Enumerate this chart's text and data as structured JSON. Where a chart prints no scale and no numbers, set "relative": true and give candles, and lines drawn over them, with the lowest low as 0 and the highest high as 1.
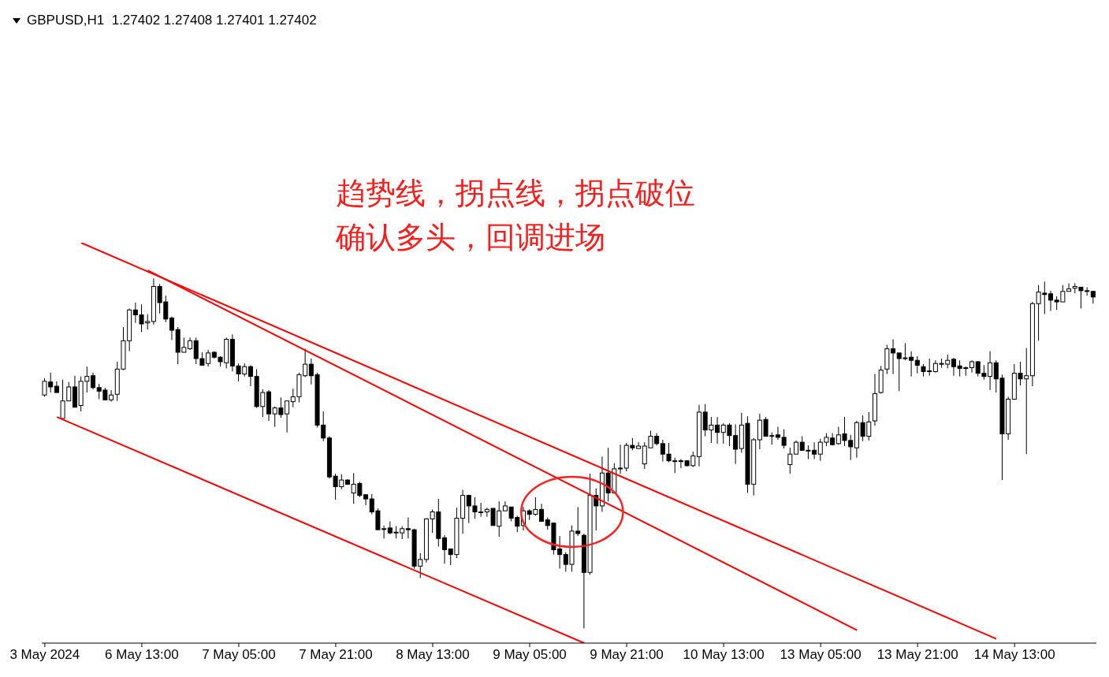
{
  "chart_data": {
    "type": "candlestick",
    "title": "GBPUSD,H1  1.27402 1.27408 1.27401 1.27402",
    "relative": true,
    "color": "#000000",
    "categories": [
      "3 May 2024",
      null,
      null,
      null,
      null,
      null,
      null,
      null,
      null,
      null,
      null,
      null,
      null,
      null,
      null,
      null,
      "6 May 13:00",
      null,
      null,
      null,
      null,
      null,
      null,
      null,
      null,
      null,
      null,
      null,
      null,
      null,
      null,
      null,
      "7 May 05:00",
      null,
      null,
      null,
      null,
      null,
      null,
      null,
      null,
      null,
      null,
      null,
      null,
      null,
      null,
      null,
      "7 May 21:00",
      null,
      null,
      null,
      null,
      null,
      null,
      null,
      null,
      null,
      null,
      null,
      null,
      null,
      null,
      null,
      "8 May 13:00",
      null,
      null,
      null,
      null,
      null,
      null,
      null,
      null,
      null,
      null,
      null,
      null,
      null,
      null,
      null,
      "9 May 05:00",
      null,
      null,
      null,
      null,
      null,
      null,
      null,
      null,
      null,
      null,
      null,
      null,
      null,
      null,
      null,
      "9 May 21:00",
      null,
      null,
      null,
      null,
      null,
      null,
      null,
      null,
      null,
      null,
      null,
      null,
      null,
      null,
      null,
      "10 May 13:00",
      null,
      null,
      null,
      null,
      null,
      null,
      null,
      null,
      null,
      null,
      null,
      null,
      null,
      null,
      null,
      "13 May 05:00",
      null,
      null,
      null,
      null,
      null,
      null,
      null,
      null,
      null,
      null,
      null,
      null,
      null,
      null,
      null,
      "13 May 21:00",
      null,
      null,
      null,
      null,
      null,
      null,
      null,
      null,
      null,
      null,
      null,
      null,
      null,
      null,
      null,
      "14 May 13:00",
      null,
      null,
      null,
      null,
      null,
      null,
      null,
      null,
      null,
      null,
      null,
      null,
      null
    ],
    "ohlc": [
      [
        0.667,
        0.715,
        0.662,
        0.706
      ],
      [
        0.704,
        0.731,
        0.674,
        0.69
      ],
      [
        0.692,
        0.706,
        0.674,
        0.674
      ],
      [
        0.6,
        0.711,
        0.6,
        0.65
      ],
      [
        0.65,
        0.704,
        0.65,
        0.69
      ],
      [
        0.69,
        0.722,
        0.632,
        0.632
      ],
      [
        0.637,
        0.72,
        0.62,
        0.706
      ],
      [
        0.706,
        0.748,
        0.674,
        0.72
      ],
      [
        0.722,
        0.731,
        0.683,
        0.688
      ],
      [
        0.688,
        0.699,
        0.655,
        0.678
      ],
      [
        0.681,
        0.688,
        0.653,
        0.653
      ],
      [
        0.653,
        0.681,
        0.648,
        0.667
      ],
      [
        0.669,
        0.762,
        0.65,
        0.741
      ],
      [
        0.741,
        0.861,
        0.738,
        0.822
      ],
      [
        0.822,
        0.914,
        0.792,
        0.91
      ],
      [
        0.91,
        0.931,
        0.873,
        0.896
      ],
      [
        0.896,
        0.926,
        0.847,
        0.87
      ],
      [
        0.873,
        0.898,
        0.854,
        0.877
      ],
      [
        0.877,
        1.0,
        0.868,
        0.977
      ],
      [
        0.977,
        0.984,
        0.9,
        0.931
      ],
      [
        0.933,
        0.951,
        0.875,
        0.884
      ],
      [
        0.887,
        0.891,
        0.824,
        0.852
      ],
      [
        0.854,
        0.861,
        0.755,
        0.789
      ],
      [
        0.789,
        0.831,
        0.789,
        0.803
      ],
      [
        0.799,
        0.831,
        0.796,
        0.822
      ],
      [
        0.822,
        0.831,
        0.755,
        0.771
      ],
      [
        0.771,
        0.789,
        0.752,
        0.752
      ],
      [
        0.757,
        0.796,
        0.748,
        0.787
      ],
      [
        0.789,
        0.792,
        0.771,
        0.775
      ],
      [
        0.775,
        0.778,
        0.748,
        0.762
      ],
      [
        0.759,
        0.831,
        0.743,
        0.826
      ],
      [
        0.826,
        0.84,
        0.734,
        0.75
      ],
      [
        0.75,
        0.757,
        0.706,
        0.727
      ],
      [
        0.727,
        0.757,
        0.72,
        0.748
      ],
      [
        0.748,
        0.752,
        0.692,
        0.72
      ],
      [
        0.72,
        0.741,
        0.63,
        0.634
      ],
      [
        0.634,
        0.683,
        0.604,
        0.674
      ],
      [
        0.676,
        0.681,
        0.593,
        0.613
      ],
      [
        0.613,
        0.634,
        0.576,
        0.63
      ],
      [
        0.63,
        0.66,
        0.602,
        0.611
      ],
      [
        0.613,
        0.65,
        0.56,
        0.65
      ],
      [
        0.648,
        0.685,
        0.632,
        0.662
      ],
      [
        0.662,
        0.731,
        0.646,
        0.725
      ],
      [
        0.722,
        0.799,
        0.718,
        0.755
      ],
      [
        0.755,
        0.771,
        0.697,
        0.722
      ],
      [
        0.725,
        0.731,
        0.574,
        0.581
      ],
      [
        0.581,
        0.62,
        0.535,
        0.544
      ],
      [
        0.544,
        0.549,
        0.428,
        0.433
      ],
      [
        0.435,
        0.442,
        0.368,
        0.405
      ],
      [
        0.405,
        0.44,
        0.398,
        0.424
      ],
      [
        0.424,
        0.426,
        0.412,
        0.412
      ],
      [
        0.387,
        0.444,
        0.356,
        0.412
      ],
      [
        0.414,
        0.419,
        0.375,
        0.38
      ],
      [
        0.382,
        0.382,
        0.352,
        0.37
      ],
      [
        0.37,
        0.384,
        0.326,
        0.333
      ],
      [
        0.336,
        0.343,
        0.282,
        0.282
      ],
      [
        0.285,
        0.294,
        0.257,
        0.285
      ],
      [
        0.287,
        0.306,
        0.269,
        0.273
      ],
      [
        0.275,
        0.292,
        0.257,
        0.275
      ],
      [
        0.273,
        0.292,
        0.255,
        0.285
      ],
      [
        0.285,
        0.317,
        0.257,
        0.282
      ],
      [
        0.282,
        0.285,
        0.171,
        0.178
      ],
      [
        0.178,
        0.215,
        0.144,
        0.197
      ],
      [
        0.197,
        0.315,
        0.188,
        0.313
      ],
      [
        0.313,
        0.34,
        0.273,
        0.333
      ],
      [
        0.333,
        0.37,
        0.234,
        0.257
      ],
      [
        0.259,
        0.266,
        0.185,
        0.225
      ],
      [
        0.227,
        0.227,
        0.181,
        0.211
      ],
      [
        0.211,
        0.345,
        0.201,
        0.315
      ],
      [
        0.315,
        0.396,
        0.271,
        0.38
      ],
      [
        0.38,
        0.382,
        0.301,
        0.35
      ],
      [
        0.35,
        0.375,
        0.313,
        0.333
      ],
      [
        0.333,
        0.359,
        0.319,
        0.333
      ],
      [
        0.333,
        0.345,
        0.319,
        0.34
      ],
      [
        0.343,
        0.343,
        0.294,
        0.294
      ],
      [
        0.292,
        0.363,
        0.262,
        0.336
      ],
      [
        0.336,
        0.363,
        0.336,
        0.35
      ],
      [
        0.347,
        0.347,
        0.306,
        0.315
      ],
      [
        0.317,
        0.322,
        0.275,
        0.292
      ],
      [
        0.294,
        0.347,
        0.28,
        0.336
      ],
      [
        0.336,
        0.34,
        0.31,
        0.326
      ],
      [
        0.326,
        0.375,
        0.322,
        0.34
      ],
      [
        0.34,
        0.356,
        0.306,
        0.306
      ],
      [
        0.31,
        0.317,
        0.282,
        0.294
      ],
      [
        0.301,
        0.303,
        0.211,
        0.225
      ],
      [
        0.227,
        0.264,
        0.171,
        0.211
      ],
      [
        0.211,
        0.218,
        0.162,
        0.183
      ],
      [
        0.183,
        0.294,
        0.162,
        0.278
      ],
      [
        0.278,
        0.347,
        0.264,
        0.271
      ],
      [
        0.266,
        0.271,
        0.0,
        0.16
      ],
      [
        0.16,
        0.442,
        0.153,
        0.38
      ],
      [
        0.38,
        0.4,
        0.28,
        0.35
      ],
      [
        0.35,
        0.491,
        0.333,
        0.444
      ],
      [
        0.444,
        0.516,
        0.363,
        0.387
      ],
      [
        0.387,
        0.472,
        0.387,
        0.456
      ],
      [
        0.458,
        0.525,
        0.442,
        0.458
      ],
      [
        0.458,
        0.53,
        0.449,
        0.523
      ],
      [
        0.523,
        0.544,
        0.509,
        0.516
      ],
      [
        0.514,
        0.532,
        0.514,
        0.521
      ],
      [
        0.47,
        0.532,
        0.456,
        0.521
      ],
      [
        0.516,
        0.565,
        0.516,
        0.549
      ],
      [
        0.549,
        0.558,
        0.523,
        0.528
      ],
      [
        0.528,
        0.539,
        0.477,
        0.498
      ],
      [
        0.498,
        0.53,
        0.475,
        0.479
      ],
      [
        0.479,
        0.488,
        0.444,
        0.479
      ],
      [
        0.479,
        0.484,
        0.458,
        0.479
      ],
      [
        0.479,
        0.481,
        0.463,
        0.465
      ],
      [
        0.465,
        0.505,
        0.461,
        0.493
      ],
      [
        0.491,
        0.639,
        0.463,
        0.618
      ],
      [
        0.618,
        0.641,
        0.549,
        0.567
      ],
      [
        0.567,
        0.604,
        0.53,
        0.581
      ],
      [
        0.581,
        0.604,
        0.528,
        0.56
      ],
      [
        0.56,
        0.586,
        0.528,
        0.581
      ],
      [
        0.581,
        0.586,
        0.521,
        0.551
      ],
      [
        0.551,
        0.583,
        0.47,
        0.512
      ],
      [
        0.514,
        0.616,
        0.502,
        0.581
      ],
      [
        0.586,
        0.606,
        0.387,
        0.412
      ],
      [
        0.412,
        0.544,
        0.38,
        0.539
      ],
      [
        0.539,
        0.613,
        0.512,
        0.595
      ],
      [
        0.597,
        0.604,
        0.549,
        0.549
      ],
      [
        0.551,
        0.56,
        0.525,
        0.551
      ],
      [
        0.553,
        0.576,
        0.539,
        0.546
      ],
      [
        0.546,
        0.569,
        0.514,
        0.523
      ],
      [
        0.468,
        0.516,
        0.442,
        0.498
      ],
      [
        0.498,
        0.537,
        0.498,
        0.532
      ],
      [
        0.532,
        0.549,
        0.507,
        0.509
      ],
      [
        0.509,
        0.523,
        0.484,
        0.509
      ],
      [
        0.509,
        0.532,
        0.484,
        0.498
      ],
      [
        0.498,
        0.542,
        0.479,
        0.532
      ],
      [
        0.532,
        0.558,
        0.521,
        0.546
      ],
      [
        0.544,
        0.558,
        0.523,
        0.525
      ],
      [
        0.528,
        0.576,
        0.525,
        0.553
      ],
      [
        0.556,
        0.604,
        0.521,
        0.537
      ],
      [
        0.537,
        0.553,
        0.481,
        0.519
      ],
      [
        0.516,
        0.593,
        0.488,
        0.588
      ],
      [
        0.588,
        0.609,
        0.535,
        0.549
      ],
      [
        0.549,
        0.618,
        0.537,
        0.59
      ],
      [
        0.593,
        0.727,
        0.579,
        0.671
      ],
      [
        0.674,
        0.75,
        0.671,
        0.738
      ],
      [
        0.741,
        0.81,
        0.727,
        0.799
      ],
      [
        0.799,
        0.826,
        0.727,
        0.787
      ],
      [
        0.787,
        0.787,
        0.678,
        0.771
      ],
      [
        0.773,
        0.815,
        0.766,
        0.773
      ],
      [
        0.775,
        0.792,
        0.72,
        0.766
      ],
      [
        0.766,
        0.778,
        0.729,
        0.752
      ],
      [
        0.748,
        0.755,
        0.72,
        0.734
      ],
      [
        0.736,
        0.771,
        0.722,
        0.736
      ],
      [
        0.734,
        0.766,
        0.731,
        0.757
      ],
      [
        0.755,
        0.771,
        0.745,
        0.757
      ],
      [
        0.755,
        0.782,
        0.743,
        0.766
      ],
      [
        0.769,
        0.773,
        0.722,
        0.748
      ],
      [
        0.75,
        0.766,
        0.72,
        0.743
      ],
      [
        0.745,
        0.748,
        0.722,
        0.745
      ],
      [
        0.745,
        0.766,
        0.731,
        0.762
      ],
      [
        0.762,
        0.764,
        0.72,
        0.729
      ],
      [
        0.729,
        0.752,
        0.711,
        0.72
      ],
      [
        0.72,
        0.792,
        0.681,
        0.759
      ],
      [
        0.759,
        0.766,
        0.674,
        0.713
      ],
      [
        0.715,
        0.725,
        0.424,
        0.556
      ],
      [
        0.556,
        0.662,
        0.539,
        0.655
      ],
      [
        0.655,
        0.755,
        0.653,
        0.729
      ],
      [
        0.729,
        0.762,
        0.694,
        0.713
      ],
      [
        0.713,
        0.801,
        0.498,
        0.722
      ],
      [
        0.722,
        0.933,
        0.692,
        0.928
      ],
      [
        0.928,
        0.981,
        0.822,
        0.961
      ],
      [
        0.958,
        0.991,
        0.898,
        0.954
      ],
      [
        0.956,
        0.965,
        0.907,
        0.938
      ],
      [
        0.938,
        0.949,
        0.91,
        0.933
      ],
      [
        0.933,
        0.981,
        0.933,
        0.963
      ],
      [
        0.963,
        0.986,
        0.963,
        0.97
      ],
      [
        0.972,
        0.986,
        0.958,
        0.977
      ],
      [
        0.975,
        0.975,
        0.914,
        0.965
      ],
      [
        0.965,
        0.975,
        0.951,
        0.963
      ],
      [
        0.963,
        0.963,
        0.928,
        0.947
      ]
    ],
    "series": [
      {
        "type": "line",
        "color": "#ff0000",
        "values": [
          null,
          null,
          null,
          null,
          null,
          null,
          1.102,
          null,
          null,
          null,
          null,
          null,
          null,
          null,
          null,
          null,
          null,
          null,
          null,
          null,
          null,
          null,
          null,
          null,
          null,
          null,
          null,
          null,
          null,
          null,
          null,
          null,
          null,
          null,
          null,
          null,
          null,
          null,
          null,
          null,
          null,
          null,
          null,
          null,
          null,
          null,
          null,
          null,
          null,
          null,
          null,
          null,
          null,
          null,
          null,
          null,
          null,
          null,
          null,
          null,
          null,
          null,
          null,
          null,
          null,
          null,
          null,
          null,
          null,
          null,
          null,
          null,
          null,
          null,
          null,
          null,
          null,
          null,
          null,
          null,
          null,
          null,
          null,
          null,
          null,
          null,
          null,
          null,
          null,
          null,
          null,
          null,
          null,
          null,
          null,
          null,
          null,
          null,
          null,
          null,
          null,
          null,
          null,
          null,
          null,
          null,
          null,
          null,
          null,
          null,
          null,
          null,
          null,
          null,
          null,
          null,
          null,
          null,
          null,
          null,
          null,
          null,
          null,
          null,
          null,
          null,
          null,
          null,
          null,
          null,
          null,
          null,
          null,
          null,
          null,
          null,
          null,
          null,
          null,
          null,
          null,
          null,
          null,
          null,
          null,
          null,
          null,
          null,
          null,
          null,
          null,
          null,
          null,
          null,
          null,
          null,
          null,
          -0.03,
          null,
          null,
          null,
          null,
          null,
          null,
          null,
          null,
          null,
          null,
          null,
          null,
          null,
          null,
          null,
          null
        ]
      },
      {
        "type": "line",
        "color": "#ff0000",
        "values": [
          null,
          null,
          null,
          null,
          null,
          null,
          null,
          null,
          null,
          null,
          null,
          null,
          null,
          null,
          null,
          null,
          null,
          1.023,
          null,
          null,
          null,
          null,
          null,
          null,
          null,
          null,
          null,
          null,
          null,
          null,
          null,
          null,
          null,
          null,
          null,
          null,
          null,
          null,
          null,
          null,
          null,
          null,
          null,
          null,
          null,
          null,
          null,
          null,
          null,
          null,
          null,
          null,
          null,
          null,
          null,
          null,
          null,
          null,
          null,
          null,
          null,
          null,
          null,
          null,
          null,
          null,
          null,
          null,
          null,
          null,
          null,
          null,
          null,
          null,
          null,
          null,
          null,
          null,
          null,
          null,
          null,
          null,
          null,
          null,
          null,
          null,
          null,
          null,
          null,
          null,
          null,
          null,
          null,
          null,
          null,
          null,
          null,
          null,
          null,
          null,
          null,
          null,
          null,
          null,
          null,
          null,
          null,
          null,
          null,
          null,
          null,
          null,
          null,
          null,
          null,
          null,
          null,
          null,
          null,
          null,
          null,
          null,
          null,
          null,
          null,
          null,
          null,
          null,
          null,
          null,
          null,
          null,
          null,
          null,
          -0.005,
          null,
          null,
          null,
          null,
          null,
          null,
          null,
          null,
          null,
          null,
          null,
          null,
          null,
          null,
          null,
          null,
          null,
          null,
          null,
          null,
          null,
          null,
          null,
          null,
          null,
          null,
          null,
          null,
          null,
          null,
          null,
          null,
          null,
          null,
          null,
          null,
          null,
          null,
          null
        ]
      },
      {
        "type": "line",
        "color": "#ff0000",
        "values": [
          null,
          null,
          0.604,
          null,
          null,
          null,
          null,
          null,
          null,
          null,
          null,
          null,
          null,
          null,
          null,
          null,
          null,
          null,
          null,
          null,
          null,
          null,
          null,
          null,
          null,
          null,
          null,
          null,
          null,
          null,
          null,
          null,
          null,
          null,
          null,
          null,
          null,
          null,
          null,
          null,
          null,
          null,
          null,
          null,
          null,
          null,
          null,
          null,
          null,
          null,
          null,
          null,
          null,
          null,
          null,
          null,
          null,
          null,
          null,
          null,
          null,
          null,
          null,
          null,
          null,
          null,
          null,
          null,
          null,
          null,
          null,
          null,
          null,
          null,
          null,
          null,
          null,
          null,
          null,
          null,
          null,
          null,
          null,
          null,
          null,
          null,
          null,
          null,
          null,
          -0.042,
          null,
          null,
          null,
          null,
          null,
          null,
          null,
          null,
          null,
          null,
          null,
          null,
          null,
          null,
          null,
          null,
          null,
          null,
          null,
          null,
          null,
          null,
          null,
          null,
          null,
          null,
          null,
          null,
          null,
          null,
          null,
          null,
          null,
          null,
          null,
          null,
          null,
          null,
          null,
          null,
          null,
          null,
          null,
          null,
          null,
          null,
          null,
          null,
          null,
          null,
          null,
          null,
          null,
          null,
          null,
          null,
          null,
          null,
          null,
          null,
          null,
          null,
          null,
          null,
          null,
          null,
          null,
          null,
          null,
          null,
          null,
          null,
          null,
          null,
          null,
          null,
          null,
          null,
          null,
          null,
          null,
          null,
          null,
          null
        ]
      }
    ],
    "annotations": [
      "趋势线，拐点线，拐点破位",
      "确认多头，回调进场"
    ]
  }
}
